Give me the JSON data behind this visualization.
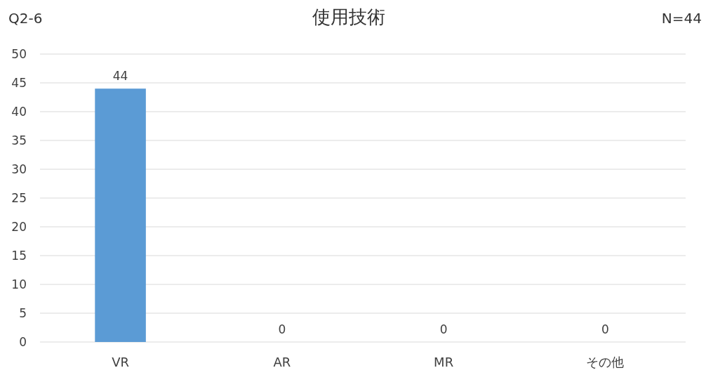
{
  "chart_data": {
    "type": "bar",
    "title": "使用技術",
    "annotations": [
      "Q2-6",
      "N=44"
    ],
    "categories": [
      "VR",
      "AR",
      "MR",
      "その他"
    ],
    "values": [
      44,
      0,
      0,
      0
    ],
    "color": "#5b9bd5",
    "ylim": [
      0,
      50
    ],
    "yticks": [
      0,
      5,
      10,
      15,
      20,
      25,
      30,
      35,
      40,
      45,
      50
    ],
    "grid": true,
    "data_labels": true
  }
}
